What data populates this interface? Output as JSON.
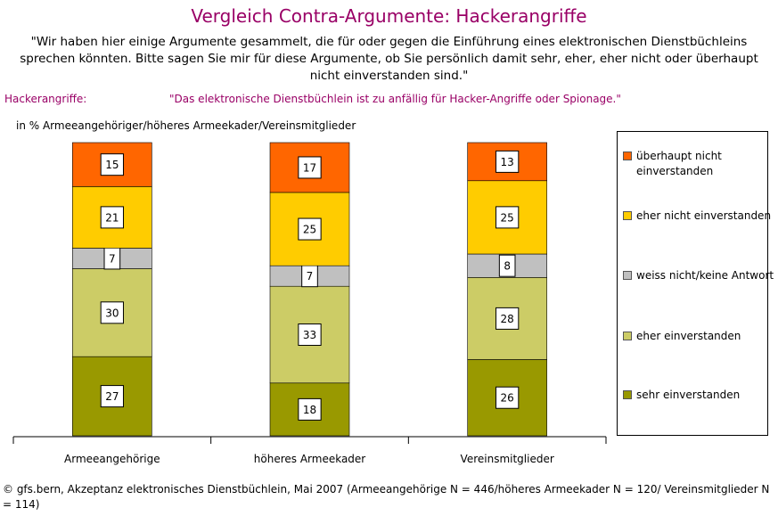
{
  "chart_data": {
    "type": "bar",
    "stacked": true,
    "title": "Vergleich Contra-Argumente: Hackerangriffe",
    "subtitle": "\"Wir haben hier einige Argumente gesammelt, die für oder gegen die Einführung eines elektronischen Dienstbüchleins sprechen könnten. Bitte sagen Sie mir für diese Argumente, ob Sie persönlich damit sehr, eher, eher nicht oder überhaupt nicht einverstanden sind.\"",
    "filter_label": "Hackerangriffe:",
    "statement": "\"Das elektronische Dienstbüchlein ist zu anfällig für Hacker-Angriffe oder Spionage.\"",
    "axis_label": "in % Armeeangehöriger/höheres Armeekader/Vereinsmitglieder",
    "categories": [
      "Armeeangehörige",
      "höheres Armeekader",
      "Vereinsmitglieder"
    ],
    "series": [
      {
        "name": "sehr einverstanden",
        "color": "#999900",
        "values": [
          27,
          18,
          26
        ]
      },
      {
        "name": "eher einverstanden",
        "color": "#CCCC66",
        "values": [
          30,
          33,
          28
        ]
      },
      {
        "name": "weiss nicht/keine Antwort",
        "color": "#C0C0C0",
        "values": [
          7,
          7,
          8
        ]
      },
      {
        "name": "eher nicht einverstanden",
        "color": "#FFCC00",
        "values": [
          21,
          25,
          25
        ]
      },
      {
        "name": "überhaupt nicht einverstanden",
        "color": "#FF6600",
        "values": [
          15,
          17,
          13
        ]
      }
    ],
    "source": "© gfs.bern, Akzeptanz elektronisches Dienstbüchlein, Mai 2007 (Armeeangehörige N = 446/höheres Armeekader N = 120/ Vereinsmitglieder N = 114)"
  }
}
